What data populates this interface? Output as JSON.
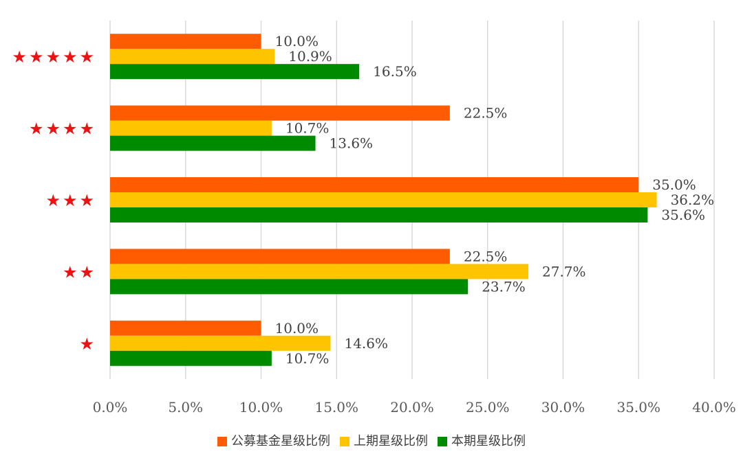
{
  "chart_data": {
    "type": "bar",
    "orientation": "horizontal",
    "title": "",
    "xlabel": "",
    "ylabel": "",
    "categories": [
      "★★★★★",
      "★★★★",
      "★★★",
      "★★",
      "★"
    ],
    "series": [
      {
        "name": "公募基金星级比例",
        "color": "#FF5B00",
        "values": [
          10.0,
          22.5,
          35.0,
          22.5,
          10.0
        ]
      },
      {
        "name": "上期星级比例",
        "color": "#FFC400",
        "values": [
          10.9,
          10.7,
          36.2,
          27.7,
          14.6
        ]
      },
      {
        "name": "本期星级比例",
        "color": "#008A00",
        "values": [
          16.5,
          13.6,
          35.6,
          23.7,
          10.7
        ]
      }
    ],
    "xlim": [
      0,
      40
    ],
    "x_ticks": [
      0,
      5,
      10,
      15,
      20,
      25,
      30,
      35,
      40
    ],
    "x_tick_labels": [
      "0.0%",
      "5.0%",
      "10.0%",
      "15.0%",
      "20.0%",
      "25.0%",
      "30.0%",
      "35.0%",
      "40.0%"
    ],
    "value_labels": [
      [
        "10.0%",
        "22.5%",
        "35.0%",
        "22.5%",
        "10.0%"
      ],
      [
        "10.9%",
        "10.7%",
        "36.2%",
        "27.7%",
        "14.6%"
      ],
      [
        "16.5%",
        "13.6%",
        "35.6%",
        "23.7%",
        "10.7%"
      ]
    ],
    "grid": true,
    "legend_position": "bottom",
    "category_label_color": "#EE1111"
  }
}
